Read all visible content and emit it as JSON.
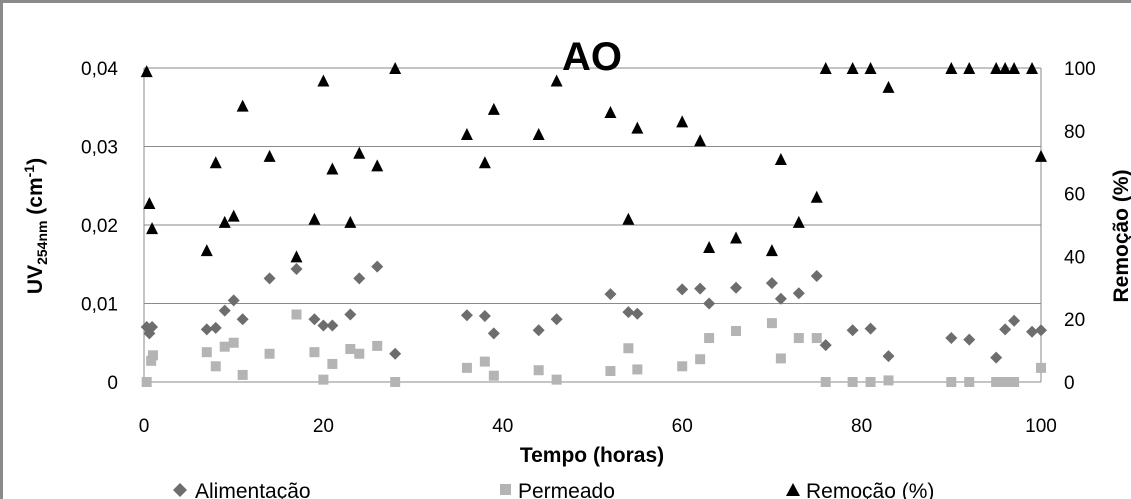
{
  "chart_data": {
    "type": "scatter",
    "title": "AO",
    "xlabel": "Tempo (horas)",
    "ylabel_main": "UV",
    "ylabel_sub": "254nm",
    "ylabel_unit": " (cm",
    "ylabel_sup": "-1",
    "ylabel_close": ")",
    "y2label": "Remoção (%)",
    "xlim": [
      0,
      100
    ],
    "ylim": [
      0,
      0.04
    ],
    "y2lim": [
      0,
      100
    ],
    "x_ticks": [
      "0",
      "20",
      "40",
      "60",
      "80",
      "100"
    ],
    "y_ticks": [
      "0",
      "0,01",
      "0,02",
      "0,03",
      "0,04"
    ],
    "y2_ticks": [
      "0",
      "20",
      "40",
      "60",
      "80",
      "100"
    ],
    "grid": true,
    "legend_position": "bottom",
    "series": [
      {
        "name": "Alimentação",
        "axis": "left",
        "marker": "diamond",
        "color": "#6d6d6d",
        "x": [
          0.3,
          0.6,
          0.9,
          7,
          8,
          9,
          10,
          11,
          14,
          17,
          19,
          20,
          21,
          23,
          24,
          26,
          28,
          36,
          38,
          39,
          44,
          46,
          52,
          54,
          55,
          60,
          62,
          63,
          66,
          70,
          71,
          73,
          75,
          76,
          79,
          81,
          83,
          90,
          92,
          95,
          96,
          97,
          99,
          100
        ],
        "y": [
          0.007,
          0.0062,
          0.007,
          0.0067,
          0.0069,
          0.0091,
          0.0104,
          0.008,
          0.0132,
          0.0144,
          0.008,
          0.0072,
          0.0072,
          0.0086,
          0.0132,
          0.0147,
          0.0036,
          0.0085,
          0.0084,
          0.0062,
          0.0066,
          0.008,
          0.0112,
          0.0089,
          0.0087,
          0.0118,
          0.0119,
          0.01,
          0.012,
          0.0126,
          0.0106,
          0.0113,
          0.0135,
          0.0047,
          0.0066,
          0.0068,
          0.0033,
          0.0056,
          0.0054,
          0.0031,
          0.0067,
          0.0078,
          0.0064,
          0.0066
        ]
      },
      {
        "name": "Permeado",
        "axis": "left",
        "marker": "square",
        "color": "#b4b4b4",
        "x": [
          0.3,
          0.8,
          1.0,
          7,
          8,
          9,
          10,
          11,
          14,
          17,
          19,
          20,
          21,
          23,
          24,
          26,
          28,
          36,
          38,
          39,
          44,
          46,
          52,
          54,
          55,
          60,
          62,
          63,
          66,
          70,
          71,
          73,
          75,
          76,
          79,
          81,
          83,
          90,
          92,
          95,
          96,
          97,
          100
        ],
        "y": [
          0.0,
          0.0027,
          0.0034,
          0.0038,
          0.002,
          0.0045,
          0.005,
          0.0009,
          0.0036,
          0.0086,
          0.0038,
          0.0003,
          0.0023,
          0.0042,
          0.0036,
          0.0046,
          0.0,
          0.0018,
          0.0026,
          0.0008,
          0.0015,
          0.0003,
          0.0014,
          0.0043,
          0.0016,
          0.002,
          0.0029,
          0.0056,
          0.0065,
          0.0075,
          0.003,
          0.0056,
          0.0056,
          0.0,
          0.0,
          0.0,
          0.0002,
          0.0,
          0.0,
          0.0,
          0.0,
          0.0,
          0.0018
        ]
      },
      {
        "name": "Remoção (%)",
        "axis": "right",
        "marker": "triangle",
        "color": "#000000",
        "x": [
          0.3,
          0.6,
          0.9,
          7,
          8,
          9,
          10,
          11,
          14,
          17,
          19,
          20,
          21,
          23,
          24,
          26,
          28,
          36,
          38,
          39,
          44,
          46,
          52,
          54,
          55,
          60,
          62,
          63,
          66,
          70,
          71,
          73,
          75,
          76,
          79,
          81,
          83,
          90,
          92,
          95,
          96,
          97,
          99,
          100
        ],
        "y": [
          99,
          57,
          49,
          42,
          70,
          51,
          53,
          88,
          72,
          40,
          52,
          96,
          68,
          51,
          73,
          69,
          100,
          79,
          70,
          87,
          79,
          96,
          86,
          52,
          81,
          83,
          77,
          43,
          46,
          42,
          71,
          51,
          59,
          100,
          100,
          100,
          94,
          100,
          100,
          100,
          100,
          100,
          100,
          72
        ]
      }
    ]
  }
}
